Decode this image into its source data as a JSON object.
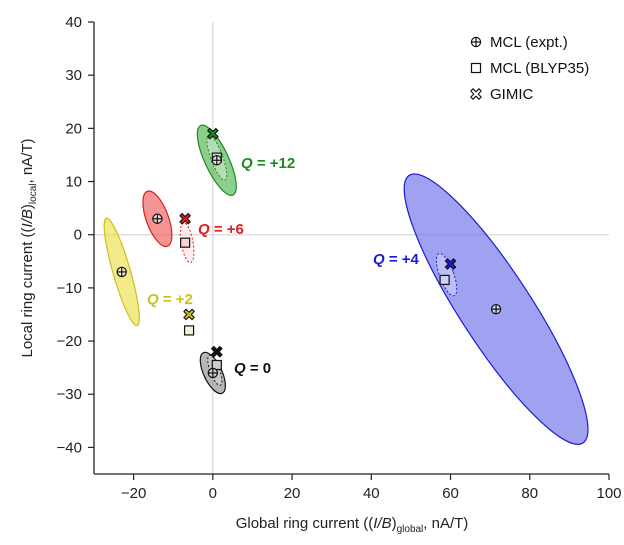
{
  "chart_data": {
    "type": "scatter",
    "xlabel": {
      "pre": "Global ring current ((",
      "ib": "I/B",
      "post": ")",
      "sub": "global",
      "tail": ", nA/T)"
    },
    "ylabel": {
      "pre": "Local ring current ((",
      "ib": "I/B",
      "post": ")",
      "sub": "local",
      "tail": ", nA/T)"
    },
    "xlim": [
      -30,
      100
    ],
    "ylim": [
      -45,
      40
    ],
    "xticks": [
      -20,
      0,
      20,
      40,
      60,
      80,
      100
    ],
    "yticks": [
      -40,
      -30,
      -20,
      -10,
      0,
      10,
      20,
      30,
      40
    ],
    "grid": false,
    "zero_lines": true,
    "legend_position": "top-right",
    "series": [
      {
        "name": "MCL (expt.)",
        "marker": "plus-circle"
      },
      {
        "name": "MCL (BLYP35)",
        "marker": "square"
      },
      {
        "name": "GIMIC",
        "marker": "x-circle"
      }
    ],
    "groups": [
      {
        "label_q": "Q",
        "label_eq": " = ",
        "label_val": "+12",
        "color": "#1e8a1e",
        "expt": {
          "x": 1,
          "y": 14
        },
        "blyp35": {
          "x": 1,
          "y": 14.5
        },
        "gimic": {
          "x": 0,
          "y": 19
        },
        "ellipse_expt": {
          "cx": 1,
          "cy": 14,
          "rx": 3,
          "ry": 7.2,
          "angle": -25,
          "fill": "#4fb44f"
        },
        "ellipse_blyp35": {
          "cx": 1,
          "cy": 14.5,
          "rx": 1.5,
          "ry": 4.5,
          "angle": -20
        }
      },
      {
        "label_q": "Q",
        "label_eq": " = ",
        "label_val": "+6",
        "color": "#e21b1b",
        "expt": {
          "x": -14,
          "y": 3
        },
        "blyp35": {
          "x": -7,
          "y": -1.5
        },
        "gimic": {
          "x": -7,
          "y": 3
        },
        "ellipse_expt": {
          "cx": -14,
          "cy": 3,
          "rx": 2.8,
          "ry": 5.5,
          "angle": -20,
          "fill": "#ef5b5b"
        },
        "ellipse_blyp35": {
          "cx": -6.5,
          "cy": -1.5,
          "rx": 1.5,
          "ry": 3.8,
          "angle": -10
        }
      },
      {
        "label_q": "Q",
        "label_eq": " = ",
        "label_val": "+2",
        "color": "#c9c21e",
        "expt": {
          "x": -23,
          "y": -7
        },
        "blyp35": {
          "x": -6,
          "y": -18
        },
        "gimic": {
          "x": -6,
          "y": -15
        },
        "ellipse_expt": {
          "cx": -23,
          "cy": -7,
          "rx": 2.2,
          "ry": 10.5,
          "angle": -16,
          "fill": "#ecdf4c"
        },
        "ellipse_blyp35": null
      },
      {
        "label_q": "Q",
        "label_eq": " = ",
        "label_val": "0",
        "color": "#111111",
        "expt": {
          "x": 0,
          "y": -26
        },
        "blyp35": {
          "x": 1,
          "y": -24.5
        },
        "gimic": {
          "x": 1,
          "y": -22
        },
        "ellipse_expt": {
          "cx": 0,
          "cy": -26,
          "rx": 2.3,
          "ry": 4.2,
          "angle": -25,
          "fill": "#8f8f8f"
        },
        "ellipse_blyp35": {
          "cx": 0.5,
          "cy": -25.5,
          "rx": 1.2,
          "ry": 3,
          "angle": -20
        }
      },
      {
        "label_q": "Q",
        "label_eq": " = ",
        "label_val": "+4",
        "color": "#1a1ad6",
        "expt": {
          "x": 71.5,
          "y": -14
        },
        "blyp35": {
          "x": 58.5,
          "y": -8.5
        },
        "gimic": {
          "x": 60,
          "y": -5.5
        },
        "ellipse_expt": {
          "cx": 71.5,
          "cy": -14,
          "rx": 9,
          "ry": 30,
          "angle": -33,
          "fill": "#6d6ee8"
        },
        "ellipse_blyp35": {
          "cx": 59,
          "cy": -7.5,
          "rx": 1.8,
          "ry": 4.2,
          "angle": -20
        }
      }
    ]
  }
}
